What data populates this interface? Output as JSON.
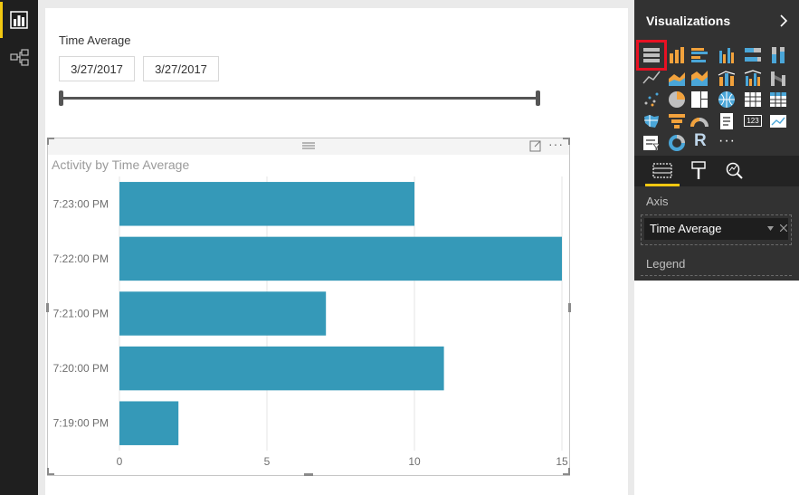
{
  "slicer": {
    "title": "Time Average",
    "start_date": "3/27/2017",
    "end_date": "3/27/2017"
  },
  "visual": {
    "more_label": "···"
  },
  "chart_data": {
    "type": "bar",
    "orientation": "horizontal",
    "title": "Activity by Time Average",
    "categories": [
      "7:23:00 PM",
      "7:22:00 PM",
      "7:21:00 PM",
      "7:20:00 PM",
      "7:19:00 PM"
    ],
    "values": [
      10,
      15,
      7,
      11,
      2
    ],
    "xlim": [
      0,
      15
    ],
    "x_ticks": [
      "0",
      "5",
      "10",
      "15"
    ],
    "grid": true,
    "bar_color": "#3599b8"
  },
  "pane": {
    "title": "Visualizations",
    "selected_visual": "stacked-bar-chart",
    "axis_label": "Axis",
    "axis_field": "Time Average",
    "legend_label": "Legend",
    "accent_color": "#f2c811",
    "selection_color": "#e81123",
    "r_label": "R",
    "table_label": "123",
    "more_visuals_label": "···"
  }
}
